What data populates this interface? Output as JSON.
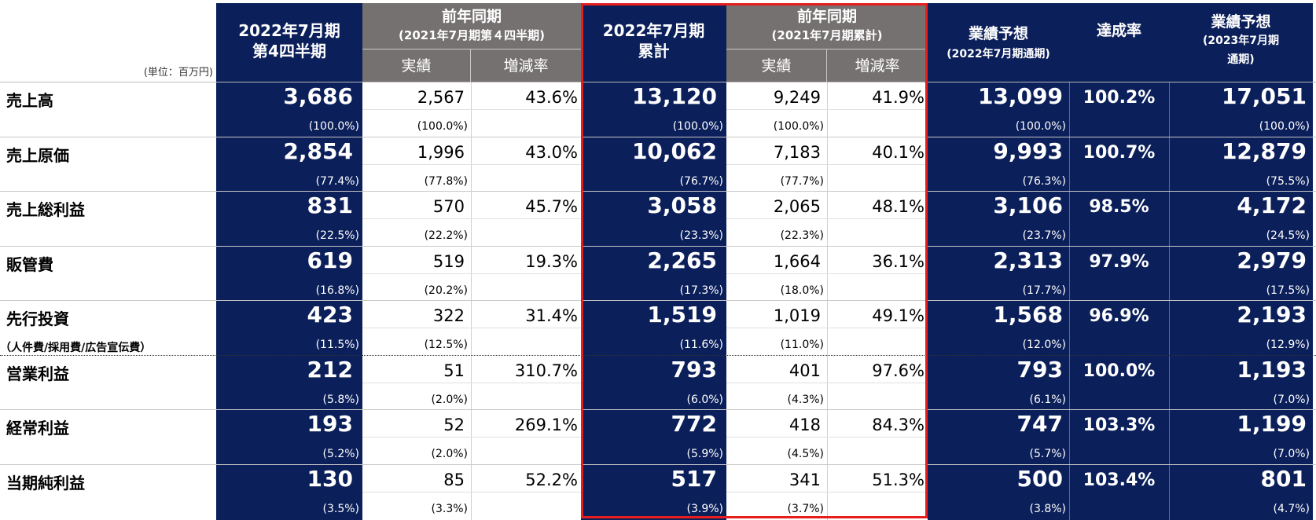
{
  "unit_label": "(単位：百万円)",
  "headers": {
    "col1": [
      "2022年7月期",
      "第4四半期"
    ],
    "col2_group": [
      "前年同期",
      "(2021年7月期第４四半期)"
    ],
    "col2_sub": [
      "実績",
      "増減率"
    ],
    "col3": [
      "2022年7月期",
      "累計"
    ],
    "col4_group": [
      "前年同期",
      "(2021年7月期累計)"
    ],
    "col4_sub": [
      "実績",
      "増減率"
    ],
    "col5": [
      "業績予想",
      "(2022年7月期通期)"
    ],
    "col6": [
      "達成率"
    ],
    "col7": [
      "業績予想",
      "(2023年7月期",
      "通期)"
    ]
  },
  "rows": [
    {
      "label": "売上高",
      "sublabel": "",
      "q4": "3,686",
      "q4_pct": "(100.0%)",
      "py_q4": "2,567",
      "py_q4_pct": "(100.0%)",
      "q4_rate": "43.6%",
      "cum": "13,120",
      "cum_pct": "(100.0%)",
      "py_cum": "9,249",
      "py_cum_pct": "(100.0%)",
      "cum_rate": "41.9%",
      "fc": "13,099",
      "fc_pct": "(100.0%)",
      "ach": "100.2%",
      "fc23": "17,051",
      "fc23_pct": "(100.0%)"
    },
    {
      "label": "売上原価",
      "sublabel": "",
      "q4": "2,854",
      "q4_pct": "(77.4%)",
      "py_q4": "1,996",
      "py_q4_pct": "(77.8%)",
      "q4_rate": "43.0%",
      "cum": "10,062",
      "cum_pct": "(76.7%)",
      "py_cum": "7,183",
      "py_cum_pct": "(77.7%)",
      "cum_rate": "40.1%",
      "fc": "9,993",
      "fc_pct": "(76.3%)",
      "ach": "100.7%",
      "fc23": "12,879",
      "fc23_pct": "(75.5%)"
    },
    {
      "label": "売上総利益",
      "sublabel": "",
      "q4": "831",
      "q4_pct": "(22.5%)",
      "py_q4": "570",
      "py_q4_pct": "(22.2%)",
      "q4_rate": "45.7%",
      "cum": "3,058",
      "cum_pct": "(23.3%)",
      "py_cum": "2,065",
      "py_cum_pct": "(22.3%)",
      "cum_rate": "48.1%",
      "fc": "3,106",
      "fc_pct": "(23.7%)",
      "ach": "98.5%",
      "fc23": "4,172",
      "fc23_pct": "(24.5%)"
    },
    {
      "label": "販管費",
      "sublabel": "",
      "q4": "619",
      "q4_pct": "(16.8%)",
      "py_q4": "519",
      "py_q4_pct": "(20.2%)",
      "q4_rate": "19.3%",
      "cum": "2,265",
      "cum_pct": "(17.3%)",
      "py_cum": "1,664",
      "py_cum_pct": "(18.0%)",
      "cum_rate": "36.1%",
      "fc": "2,313",
      "fc_pct": "(17.7%)",
      "ach": "97.9%",
      "fc23": "2,979",
      "fc23_pct": "(17.5%)"
    },
    {
      "label": "先行投資",
      "sublabel": "（人件費/採用費/広告宣伝費）",
      "q4": "423",
      "q4_pct": "(11.5%)",
      "py_q4": "322",
      "py_q4_pct": "(12.5%)",
      "q4_rate": "31.4%",
      "cum": "1,519",
      "cum_pct": "(11.6%)",
      "py_cum": "1,019",
      "py_cum_pct": "(11.0%)",
      "cum_rate": "49.1%",
      "fc": "1,568",
      "fc_pct": "(12.0%)",
      "ach": "96.9%",
      "fc23": "2,193",
      "fc23_pct": "(12.9%)"
    },
    {
      "label": "営業利益",
      "sublabel": "",
      "q4": "212",
      "q4_pct": "(5.8%)",
      "py_q4": "51",
      "py_q4_pct": "(2.0%)",
      "q4_rate": "310.7%",
      "cum": "793",
      "cum_pct": "(6.0%)",
      "py_cum": "401",
      "py_cum_pct": "(4.3%)",
      "cum_rate": "97.6%",
      "fc": "793",
      "fc_pct": "(6.1%)",
      "ach": "100.0%",
      "fc23": "1,193",
      "fc23_pct": "(7.0%)"
    },
    {
      "label": "経常利益",
      "sublabel": "",
      "q4": "193",
      "q4_pct": "(5.2%)",
      "py_q4": "52",
      "py_q4_pct": "(2.0%)",
      "q4_rate": "269.1%",
      "cum": "772",
      "cum_pct": "(5.9%)",
      "py_cum": "418",
      "py_cum_pct": "(4.5%)",
      "cum_rate": "84.3%",
      "fc": "747",
      "fc_pct": "(5.7%)",
      "ach": "103.3%",
      "fc23": "1,199",
      "fc23_pct": "(7.0%)"
    },
    {
      "label": "当期純利益",
      "sublabel": "",
      "q4": "130",
      "q4_pct": "(3.5%)",
      "py_q4": "85",
      "py_q4_pct": "(3.3%)",
      "q4_rate": "52.2%",
      "cum": "517",
      "cum_pct": "(3.9%)",
      "py_cum": "341",
      "py_cum_pct": "(3.7%)",
      "cum_rate": "51.3%",
      "fc": "500",
      "fc_pct": "(3.8%)",
      "ach": "103.4%",
      "fc23": "801",
      "fc23_pct": "(4.7%)"
    }
  ]
}
